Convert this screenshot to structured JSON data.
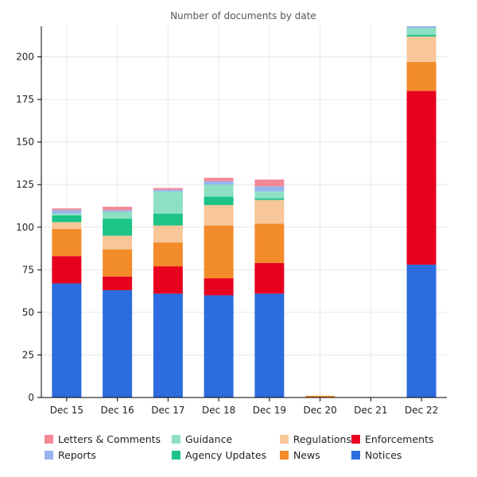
{
  "chart_data": {
    "type": "bar",
    "stacked": true,
    "title": "Number of documents by date",
    "xlabel": "",
    "ylabel": "",
    "categories": [
      "Dec 15",
      "Dec 16",
      "Dec 17",
      "Dec 18",
      "Dec 19",
      "Dec 20",
      "Dec 21",
      "Dec 22"
    ],
    "ylim": [
      0,
      218
    ],
    "yticks": [
      0,
      25,
      50,
      75,
      100,
      125,
      150,
      175,
      200
    ],
    "grid": true,
    "legend_position": "bottom",
    "series": [
      {
        "name": "Notices",
        "color": "#2b6cde",
        "values": [
          67,
          63,
          61,
          60,
          61,
          0,
          0,
          78
        ]
      },
      {
        "name": "Enforcements",
        "color": "#e8001f",
        "values": [
          16,
          8,
          16,
          10,
          18,
          0,
          0,
          102
        ]
      },
      {
        "name": "News",
        "color": "#f28b2a",
        "values": [
          16,
          16,
          14,
          31,
          23,
          1,
          0,
          17
        ]
      },
      {
        "name": "Regulations",
        "color": "#f8c699",
        "values": [
          4,
          8,
          10,
          12,
          14,
          0,
          0,
          15
        ]
      },
      {
        "name": "Agency Updates",
        "color": "#1cc486",
        "values": [
          4,
          10,
          7,
          5,
          1,
          0,
          0,
          1
        ]
      },
      {
        "name": "Guidance",
        "color": "#8de0c4",
        "values": [
          1,
          4,
          13,
          7,
          4,
          0,
          0,
          4
        ]
      },
      {
        "name": "Reports",
        "color": "#96b4ee",
        "values": [
          2,
          1,
          1,
          2,
          3,
          0,
          0,
          1
        ]
      },
      {
        "name": "Letters & Comments",
        "color": "#f58897",
        "values": [
          1,
          2,
          1,
          2,
          4,
          0,
          0,
          0
        ]
      }
    ],
    "legend": [
      {
        "name": "Letters & Comments",
        "color": "#f58897"
      },
      {
        "name": "Guidance",
        "color": "#8de0c4"
      },
      {
        "name": "Regulations",
        "color": "#f8c699"
      },
      {
        "name": "Enforcements",
        "color": "#e8001f"
      },
      {
        "name": "Reports",
        "color": "#96b4ee"
      },
      {
        "name": "Agency Updates",
        "color": "#1cc486"
      },
      {
        "name": "News",
        "color": "#f28b2a"
      },
      {
        "name": "Notices",
        "color": "#2b6cde"
      }
    ]
  }
}
